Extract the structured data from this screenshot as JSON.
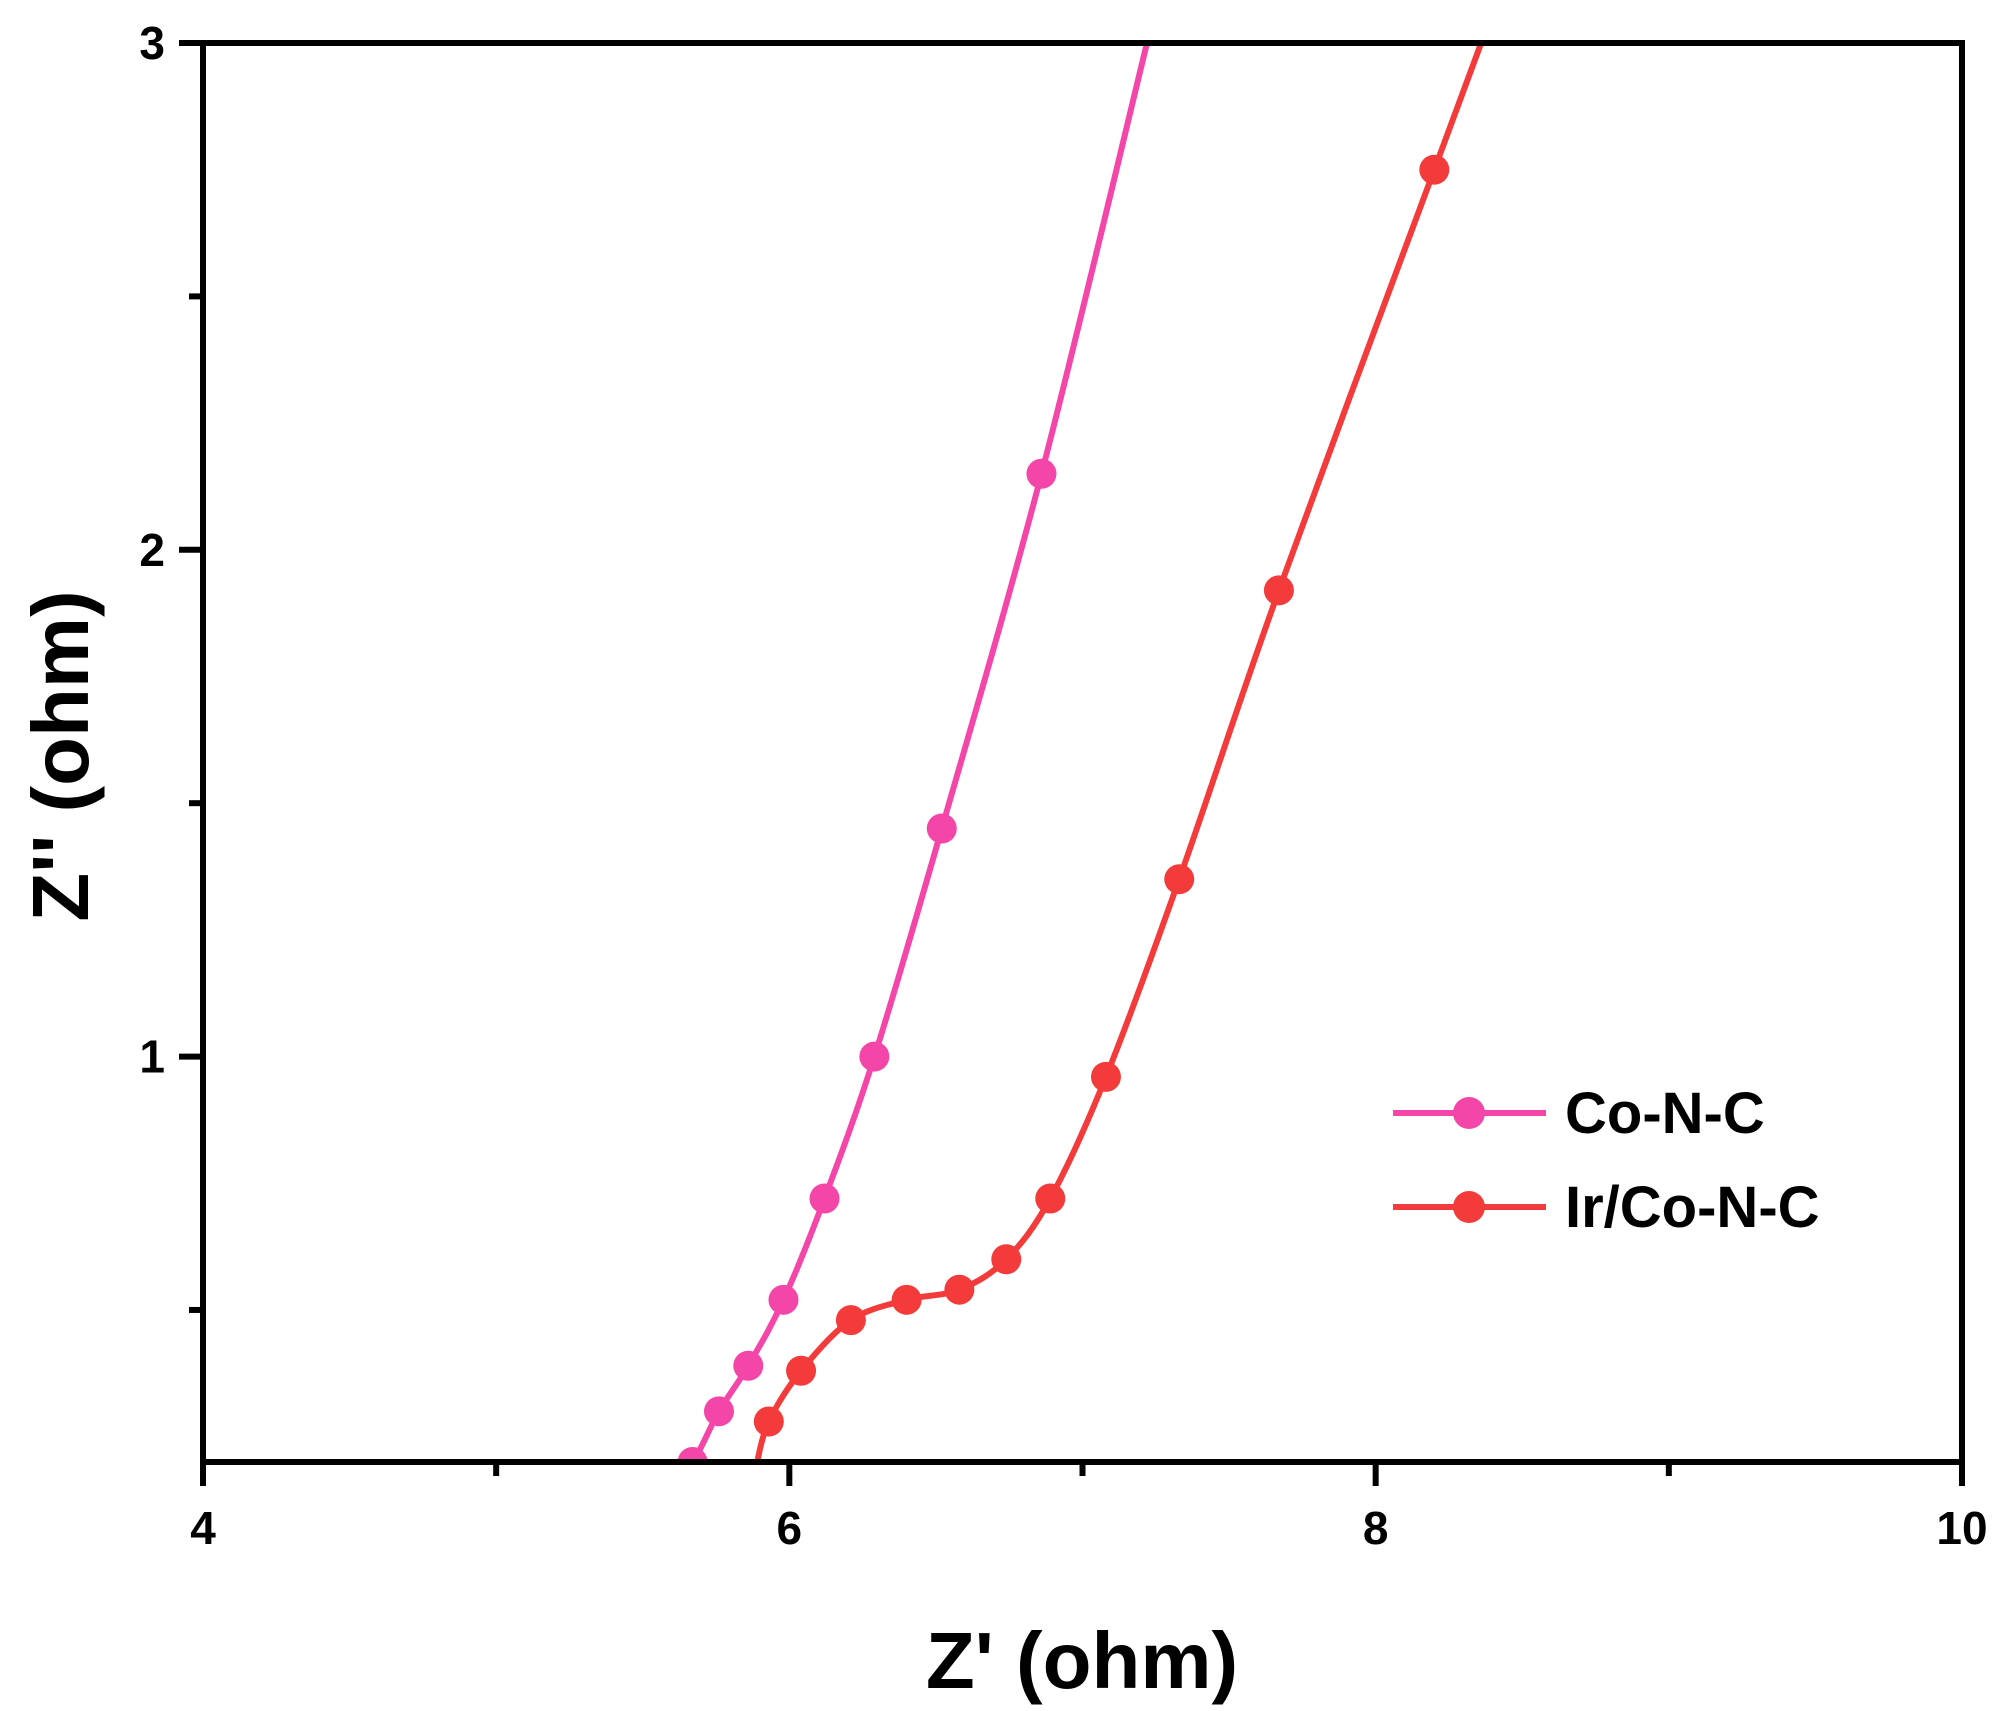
{
  "chart_data": {
    "type": "line",
    "title": "",
    "xlabel": "Z' (ohm)",
    "ylabel": "Z'' (ohm)",
    "xlim": [
      4,
      10
    ],
    "ylim": [
      0.2,
      3
    ],
    "x_ticks": [
      4,
      6,
      8,
      10
    ],
    "x_tick_labels": [
      "4",
      "6",
      "8",
      "10"
    ],
    "x_minor_ticks": [
      5,
      7,
      9
    ],
    "y_ticks": [
      1,
      2,
      3
    ],
    "y_tick_labels": [
      "1",
      "2",
      "3"
    ],
    "y_minor_ticks": [
      0.5,
      1.5,
      2.5
    ],
    "grid": false,
    "legend_position": "middle-right",
    "series": [
      {
        "name": "Co-N-C",
        "color": "#F445A8",
        "marker": "circle",
        "markers": [
          [
            5.67,
            0.2
          ],
          [
            5.76,
            0.3
          ],
          [
            5.86,
            0.39
          ],
          [
            5.98,
            0.52
          ],
          [
            6.12,
            0.72
          ],
          [
            6.29,
            1.0
          ],
          [
            6.52,
            1.45
          ],
          [
            6.86,
            2.15
          ]
        ],
        "line": [
          [
            5.62,
            0.2
          ],
          [
            5.67,
            0.2
          ],
          [
            5.76,
            0.3
          ],
          [
            5.86,
            0.39
          ],
          [
            5.98,
            0.52
          ],
          [
            6.12,
            0.72
          ],
          [
            6.29,
            1.0
          ],
          [
            6.52,
            1.45
          ],
          [
            6.86,
            2.15
          ],
          [
            7.22,
            3.0
          ]
        ]
      },
      {
        "name": "Ir/Co-N-C",
        "color": "#F43B3B",
        "marker": "circle",
        "markers": [
          [
            5.93,
            0.28
          ],
          [
            6.04,
            0.38
          ],
          [
            6.21,
            0.48
          ],
          [
            6.4,
            0.52
          ],
          [
            6.58,
            0.54
          ],
          [
            6.74,
            0.6
          ],
          [
            6.89,
            0.72
          ],
          [
            7.08,
            0.96
          ],
          [
            7.33,
            1.35
          ],
          [
            7.67,
            1.92
          ],
          [
            8.2,
            2.75
          ]
        ],
        "line": [
          [
            5.89,
            0.2
          ],
          [
            5.93,
            0.28
          ],
          [
            6.04,
            0.38
          ],
          [
            6.21,
            0.48
          ],
          [
            6.4,
            0.52
          ],
          [
            6.58,
            0.54
          ],
          [
            6.74,
            0.6
          ],
          [
            6.89,
            0.72
          ],
          [
            7.08,
            0.96
          ],
          [
            7.33,
            1.35
          ],
          [
            7.67,
            1.92
          ],
          [
            8.2,
            2.75
          ],
          [
            8.36,
            3.0
          ]
        ]
      }
    ]
  }
}
